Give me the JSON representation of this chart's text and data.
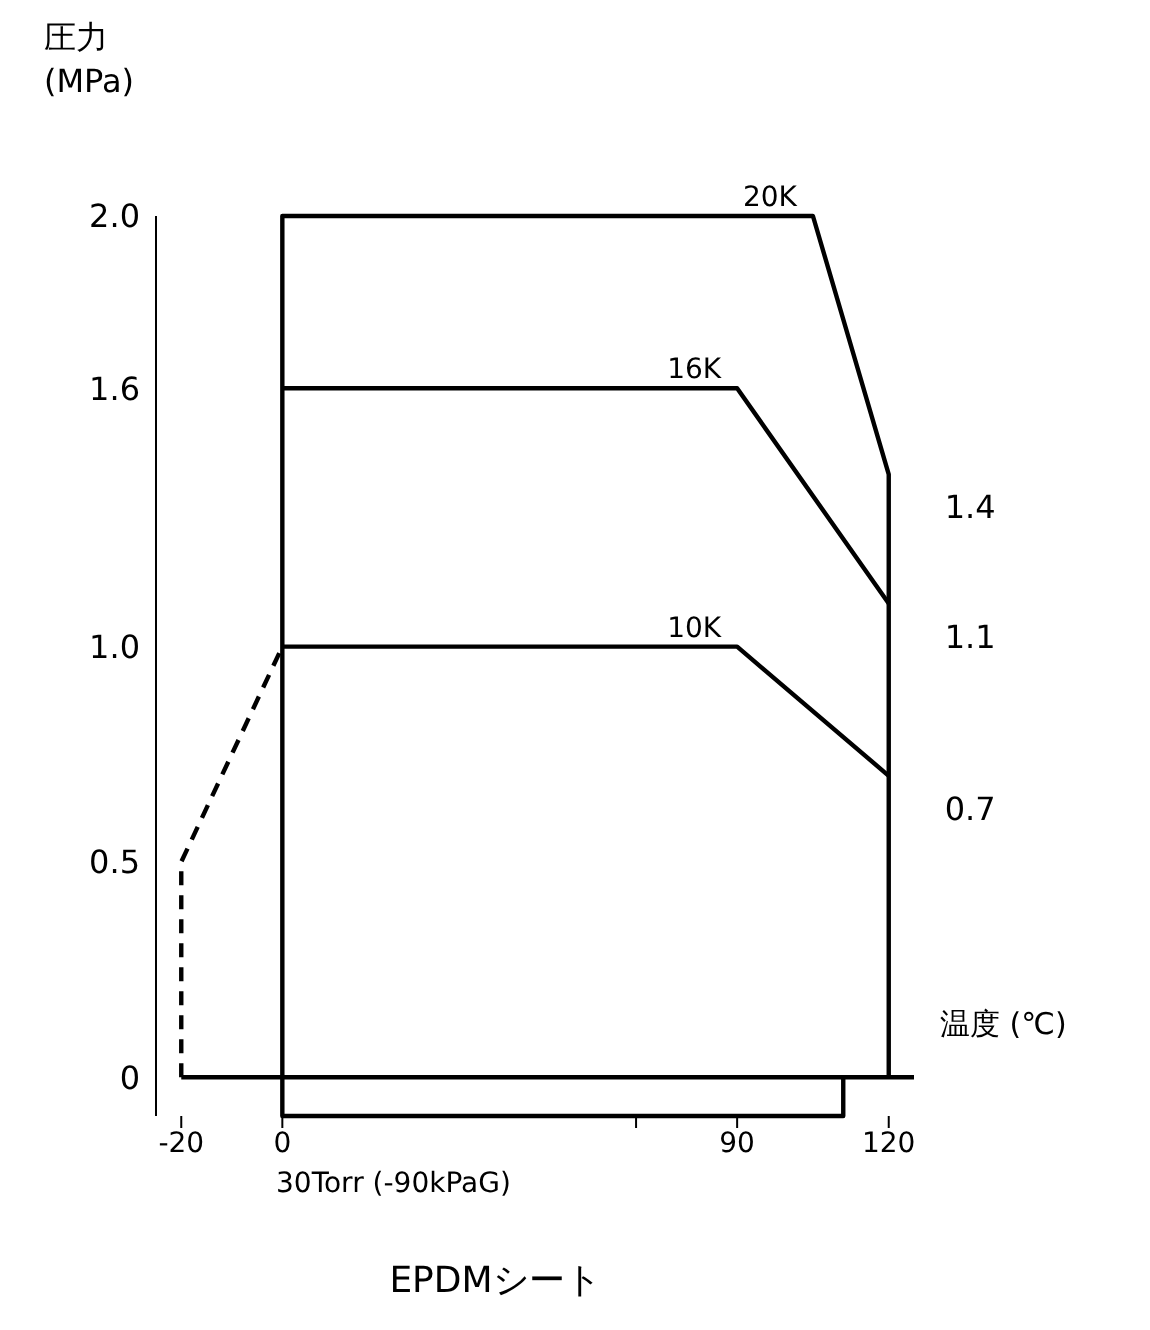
{
  "chart_data": {
    "type": "line",
    "title": "EPDMシート",
    "ylabel": "圧力\n(MPa)",
    "xlabel": "温度 (℃)",
    "annotations": [
      "30Torr (-90kPaG)"
    ],
    "xlim": [
      -25,
      125
    ],
    "xticks": [
      -20,
      0,
      {
        "value": 70,
        "label": null
      },
      90,
      120
    ],
    "ylim": [
      -0.09,
      2.0
    ],
    "yticks": [
      0,
      0.5,
      {
        "value": 1.0,
        "label": "1.0"
      },
      1.6,
      {
        "value": 2.0,
        "label": "2.0"
      }
    ],
    "grid": false,
    "legend": false,
    "line_style": "solid",
    "marker": "none",
    "series": [
      {
        "color": "#000000",
        "x": [
          -20,
          125
        ],
        "values": [
          0,
          0
        ]
      },
      {
        "name": "20K",
        "color": "#000000",
        "x": [
          111,
          111,
          0,
          0,
          105,
          120,
          120
        ],
        "values": [
          0,
          -0.09,
          -0.09,
          2.0,
          2.0,
          1.4,
          0
        ],
        "value_labels": [
          null,
          null,
          null,
          null,
          null,
          "1.4",
          null
        ]
      },
      {
        "name": "16K",
        "color": "#000000",
        "x": [
          0,
          90,
          120
        ],
        "values": [
          1.6,
          1.6,
          1.1
        ],
        "value_labels": [
          null,
          null,
          "1.1"
        ]
      },
      {
        "name": "10K",
        "color": "#000000",
        "x": [
          0,
          90,
          120
        ],
        "values": [
          1.0,
          1.0,
          0.7
        ],
        "value_labels": [
          null,
          null,
          "0.7"
        ]
      },
      {
        "color": "#000000",
        "x": [
          -20,
          -20,
          0
        ],
        "values": [
          0,
          0.5,
          1.0
        ],
        "line_style": "dashed"
      }
    ]
  }
}
